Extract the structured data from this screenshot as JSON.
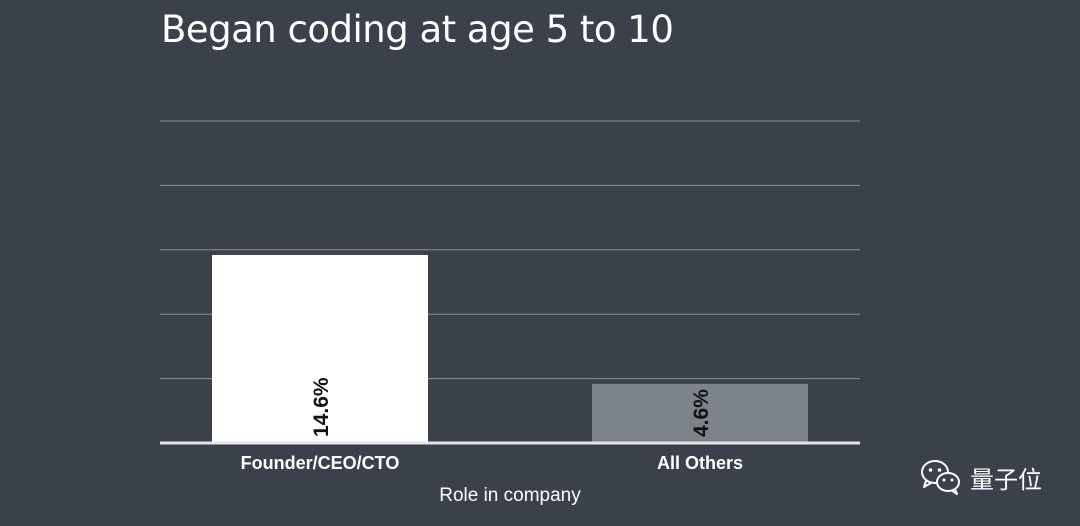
{
  "chart_data": {
    "type": "bar",
    "title": "Began coding at age 5 to 10",
    "xlabel": "Role in company",
    "ylabel": "",
    "categories": [
      "Founder/CEO/CTO",
      "All Others"
    ],
    "values": [
      14.6,
      4.6
    ],
    "value_labels": [
      "14.6%",
      "4.6%"
    ],
    "bar_colors": [
      "#ffffff",
      "#7d838b"
    ],
    "ylim": [
      0,
      25
    ],
    "gridlines": [
      5,
      10,
      15,
      20
    ],
    "grid": true
  },
  "watermark": {
    "text": "量子位",
    "icon": "wechat-icon"
  }
}
